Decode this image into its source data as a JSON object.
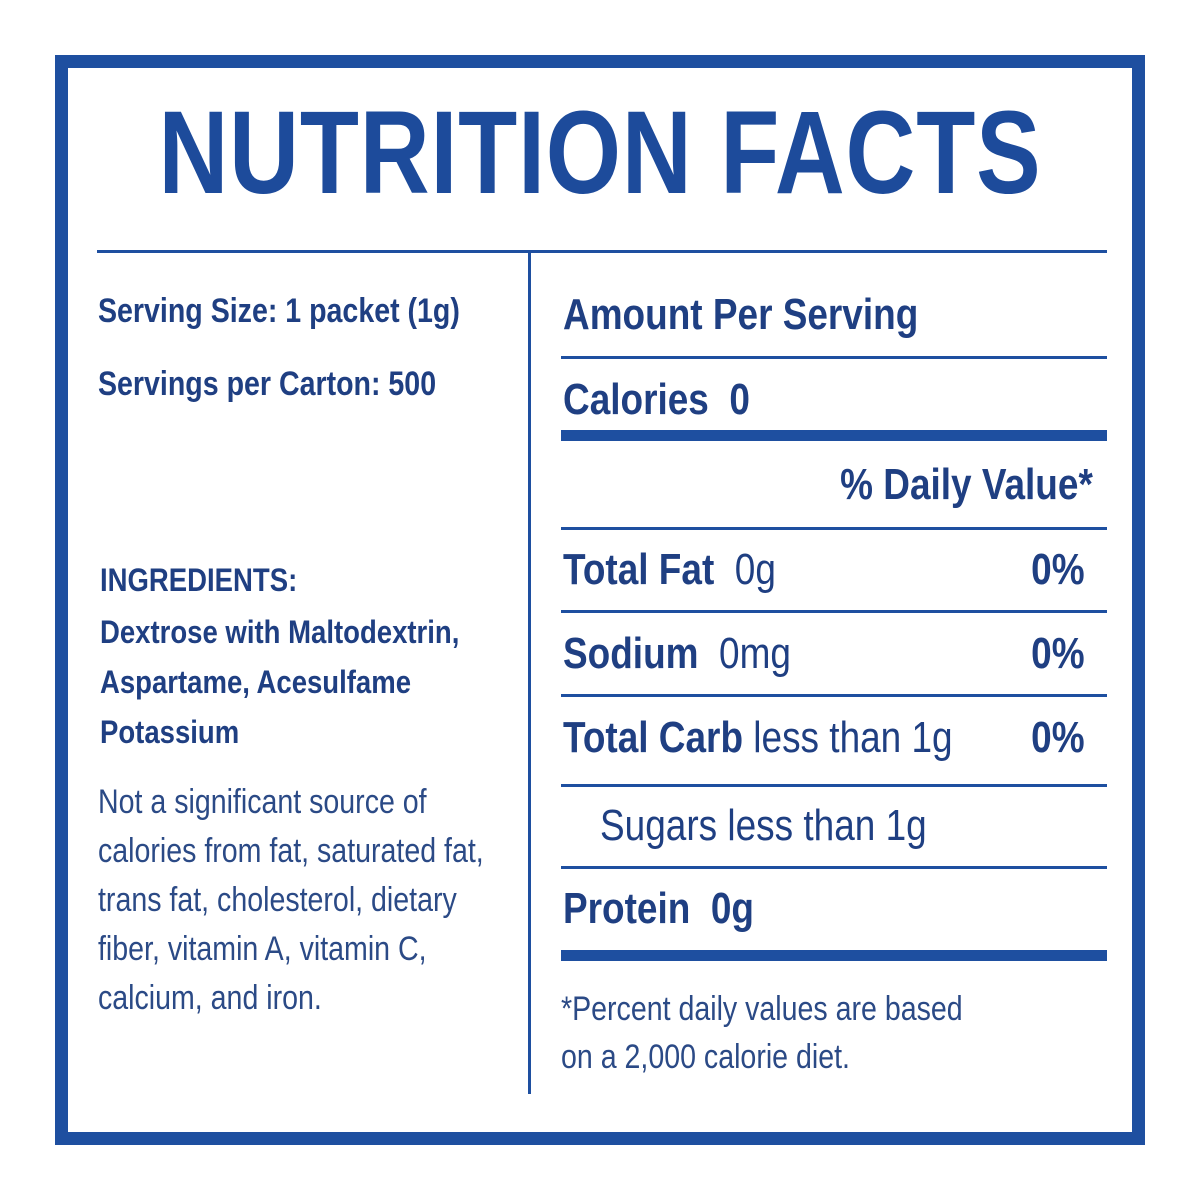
{
  "title": "NUTRITION FACTS",
  "serving": {
    "size": "Serving Size: 1 packet (1g)",
    "per_carton": "Servings per Carton: 500"
  },
  "ingredients": {
    "heading": "INGREDIENTS:",
    "lines": [
      "Dextrose with Maltodextrin,",
      "Aspartame, Acesulfame",
      "Potassium"
    ]
  },
  "note_lines": [
    "Not a significant source of",
    "calories from fat, saturated fat,",
    "trans fat, cholesterol, dietary",
    "fiber, vitamin A, vitamin C,",
    "calcium, and iron."
  ],
  "panel": {
    "amount_per_serving": "Amount Per Serving",
    "calories_label": "Calories",
    "calories_value": "0",
    "daily_value_header": "% Daily Value*",
    "rows": [
      {
        "label": "Total Fat",
        "amount": "0g",
        "dv": "0%"
      },
      {
        "label": "Sodium",
        "amount": "0mg",
        "dv": "0%"
      },
      {
        "label": "Total Carb",
        "amount": "less than 1g",
        "dv": "0%"
      }
    ],
    "sugars": "Sugars less than 1g",
    "protein_label": "Protein",
    "protein_value": "0g",
    "footnote_lines": [
      "*Percent daily values are based",
      "on a 2,000 calorie diet."
    ]
  },
  "colors": {
    "brand_blue": "#1e4fa0",
    "text_blue": "#1f3f82"
  }
}
